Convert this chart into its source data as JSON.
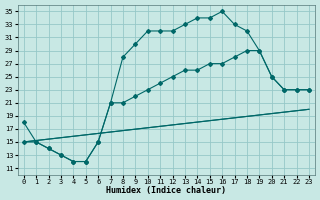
{
  "xlabel": "Humidex (Indice chaleur)",
  "xlim": [
    -0.5,
    23.5
  ],
  "ylim": [
    10,
    36
  ],
  "yticks": [
    11,
    13,
    15,
    17,
    19,
    21,
    23,
    25,
    27,
    29,
    31,
    33,
    35
  ],
  "xticks": [
    0,
    1,
    2,
    3,
    4,
    5,
    6,
    7,
    8,
    9,
    10,
    11,
    12,
    13,
    14,
    15,
    16,
    17,
    18,
    19,
    20,
    21,
    22,
    23
  ],
  "bg_color": "#c8e8e4",
  "grid_color": "#96c8c8",
  "line_color": "#006868",
  "line1_x": [
    0,
    1,
    2,
    3,
    4,
    5,
    6,
    7,
    8,
    9,
    10,
    11,
    12,
    13,
    14,
    15,
    16,
    17,
    18,
    19,
    20,
    21,
    22,
    23
  ],
  "line1_y": [
    18,
    15,
    14,
    13,
    12,
    12,
    15,
    21,
    28,
    30,
    32,
    32,
    32,
    33,
    34,
    34,
    35,
    33,
    32,
    29,
    25,
    23,
    23,
    23
  ],
  "line2_x": [
    0,
    1,
    2,
    3,
    4,
    5,
    6,
    7,
    8,
    9,
    10,
    11,
    12,
    13,
    14,
    15,
    16,
    17,
    18,
    19,
    20,
    21,
    22,
    23
  ],
  "line2_y": [
    15,
    15,
    14,
    13,
    12,
    12,
    15,
    21,
    21,
    22,
    23,
    24,
    25,
    26,
    26,
    27,
    27,
    28,
    29,
    29,
    25,
    23,
    23,
    23
  ],
  "line3_x": [
    0,
    23
  ],
  "line3_y": [
    15,
    20
  ],
  "line4_x": [
    0,
    23
  ],
  "line4_y": [
    15,
    20
  ]
}
